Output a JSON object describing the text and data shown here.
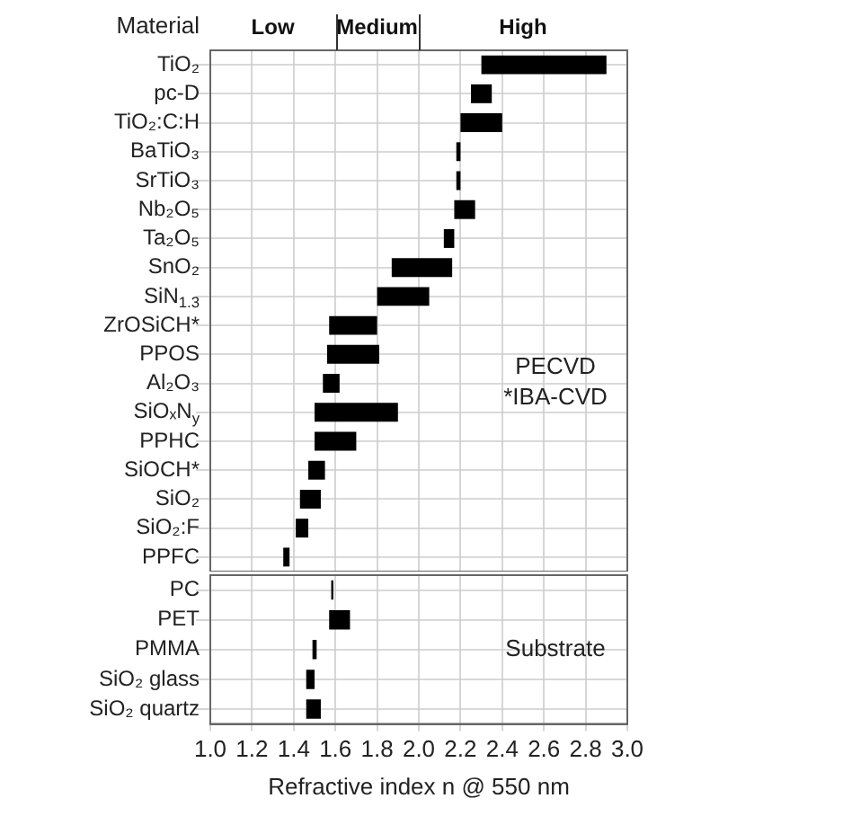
{
  "chart_data": [
    {
      "type": "bar",
      "orientation": "horizontal",
      "ylabel": "Material",
      "tick_labels": "y",
      "grid": true,
      "legend": false,
      "categories": [
        "TiO₂",
        "pc-D",
        "TiO₂:C:H",
        "BaTiO₃",
        "SrTiO₃",
        "Nb₂O₅",
        "Ta₂O₅",
        "SnO₂",
        "SiN$_{1.3}$",
        "ZrOSiCH*",
        "PPOS",
        "Al₂O₃",
        "SiOₓN$_{y}$",
        "PPHC",
        "SiOCH*",
        "SiO₂",
        "SiO₂:F",
        "PPFC"
      ],
      "base": [
        2.3,
        2.25,
        2.2,
        2.18,
        2.18,
        2.17,
        2.12,
        1.87,
        1.8,
        1.57,
        1.56,
        1.54,
        1.5,
        1.5,
        1.47,
        1.43,
        1.41,
        1.35
      ],
      "values": [
        0.6,
        0.1,
        0.2,
        0.02,
        0.02,
        0.1,
        0.05,
        0.29,
        0.25,
        0.23,
        0.25,
        0.08,
        0.4,
        0.2,
        0.08,
        0.1,
        0.06,
        0.03
      ],
      "color": "#000000",
      "xlim": [
        1.0,
        3.0
      ],
      "xticks": [
        1,
        1.2,
        1.4,
        1.6,
        1.8,
        2,
        2.2,
        2.4,
        2.6,
        2.8,
        3
      ],
      "annotations": [
        "Low",
        "Medium",
        "High",
        "PECVD",
        "*IBA-CVD"
      ]
    },
    {
      "type": "bar",
      "orientation": "horizontal",
      "xlabel": "Refractive index n @ 550 nm",
      "grid": true,
      "legend": false,
      "categories": [
        "PC",
        "PET",
        "PMMA",
        "SiO₂ glass",
        "SiO₂ quartz"
      ],
      "base": [
        1.58,
        1.57,
        1.49,
        1.46,
        1.46
      ],
      "values": [
        0.01,
        0.1,
        0.02,
        0.04,
        0.07
      ],
      "color": "#000000",
      "xlim": [
        1.0,
        3.0
      ],
      "xticks": [
        {
          "value": 1.0,
          "label": "1.0"
        },
        1.2,
        1.4,
        1.6,
        1.8,
        {
          "value": 2.0,
          "label": "2.0"
        },
        2.2,
        2.4,
        2.6,
        2.8,
        {
          "value": 3.0,
          "label": "3.0"
        }
      ],
      "annotations": [
        "Substrate"
      ]
    }
  ]
}
